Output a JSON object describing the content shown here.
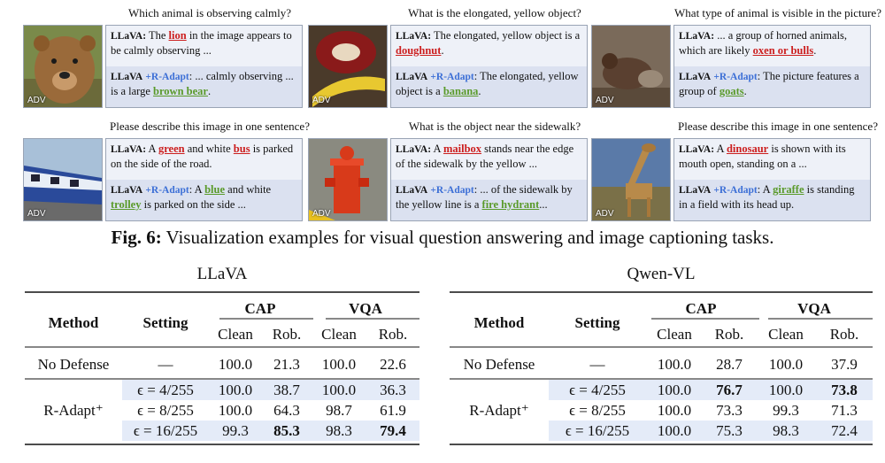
{
  "examples": [
    {
      "question": "Which animal is observing calmly?",
      "adv": "ADV",
      "a1": {
        "label": "LLaVA:",
        "pre": " The ",
        "key": "lion",
        "post": " in the image appears to be calmly observing ..."
      },
      "a2": {
        "label": "LLaVA",
        "tag": "+R-Adapt",
        "pre": ": ... calmly observing ... is a large ",
        "key": "brown bear",
        "post": "."
      }
    },
    {
      "question": "What is the elongated, yellow object?",
      "adv": "ADV",
      "a1": {
        "label": "LLaVA:",
        "pre": " The elongated, yellow object is a ",
        "key": "doughnut",
        "post": "."
      },
      "a2": {
        "label": "LLaVA",
        "tag": "+R-Adapt",
        "pre": ": The elongated, yellow object is a ",
        "key": "banana",
        "post": "."
      }
    },
    {
      "question": "What type of animal is visible in the picture?",
      "adv": "ADV",
      "a1": {
        "label": "LLaVA:",
        "pre": " ... a group of horned animals, which are likely ",
        "key": "oxen or bulls",
        "post": "."
      },
      "a2": {
        "label": "LLaVA",
        "tag": "+R-Adapt",
        "pre": ": The picture features a group of ",
        "key": "goats",
        "post": "."
      }
    },
    {
      "question": "Please describe this image in one sentence?",
      "adv": "ADV",
      "a1": {
        "label": "LLaVA:",
        "pre": " A ",
        "key": "green",
        "mid": " and white ",
        "key2": "bus",
        "post": " is parked on the side of the road."
      },
      "a2": {
        "label": "LLaVA",
        "tag": "+R-Adapt",
        "pre": ": A ",
        "key": "blue",
        "mid": " and white ",
        "key2": "trolley",
        "post": " is parked on the side ..."
      }
    },
    {
      "question": "What is the object near the sidewalk?",
      "adv": "ADV",
      "a1": {
        "label": "LLaVA:",
        "pre": " A ",
        "key": "mailbox",
        "post": " stands near the edge of the sidewalk by the yellow ..."
      },
      "a2": {
        "label": "LLaVA",
        "tag": "+R-Adapt",
        "pre": ": ... of the sidewalk by the yellow line is a ",
        "key": "fire hydrant",
        "post": "..."
      }
    },
    {
      "question": "Please describe this image in one sentence?",
      "adv": "ADV",
      "a1": {
        "label": "LLaVA:",
        "pre": " A ",
        "key": "dinosaur",
        "post": " is shown with its mouth open, standing on a ..."
      },
      "a2": {
        "label": "LLaVA",
        "tag": "+R-Adapt",
        "pre": ": A ",
        "key": "giraffe",
        "post": " is standing in a field with its head up."
      }
    }
  ],
  "caption": {
    "label": "Fig. 6:",
    "text": " Visualization examples for visual question answering and image captioning tasks."
  },
  "tables": [
    {
      "title": "LLaVA",
      "head": {
        "method": "Method",
        "setting": "Setting",
        "cap": "CAP",
        "vqa": "VQA",
        "clean": "Clean",
        "rob": "Rob."
      },
      "rows": [
        {
          "method": "No Defense",
          "setting": "—",
          "v": [
            "100.0",
            "21.3",
            "100.0",
            "22.6"
          ]
        },
        {
          "method": "R-Adapt⁺",
          "setting": "ϵ = 4/255",
          "v": [
            "100.0",
            "38.7",
            "100.0",
            "36.3"
          ]
        },
        {
          "setting": "ϵ = 8/255",
          "v": [
            "100.0",
            "64.3",
            "98.7",
            "61.9"
          ]
        },
        {
          "setting": "ϵ = 16/255",
          "v": [
            "99.3",
            "85.3",
            "98.3",
            "79.4"
          ]
        }
      ]
    },
    {
      "title": "Qwen-VL",
      "head": {
        "method": "Method",
        "setting": "Setting",
        "cap": "CAP",
        "vqa": "VQA",
        "clean": "Clean",
        "rob": "Rob."
      },
      "rows": [
        {
          "method": "No Defense",
          "setting": "—",
          "v": [
            "100.0",
            "28.7",
            "100.0",
            "37.9"
          ]
        },
        {
          "method": "R-Adapt⁺",
          "setting": "ϵ = 4/255",
          "v": [
            "100.0",
            "76.7",
            "100.0",
            "73.8"
          ]
        },
        {
          "setting": "ϵ = 8/255",
          "v": [
            "100.0",
            "73.3",
            "99.3",
            "71.3"
          ]
        },
        {
          "setting": "ϵ = 16/255",
          "v": [
            "100.0",
            "75.3",
            "98.3",
            "72.4"
          ]
        }
      ]
    }
  ]
}
